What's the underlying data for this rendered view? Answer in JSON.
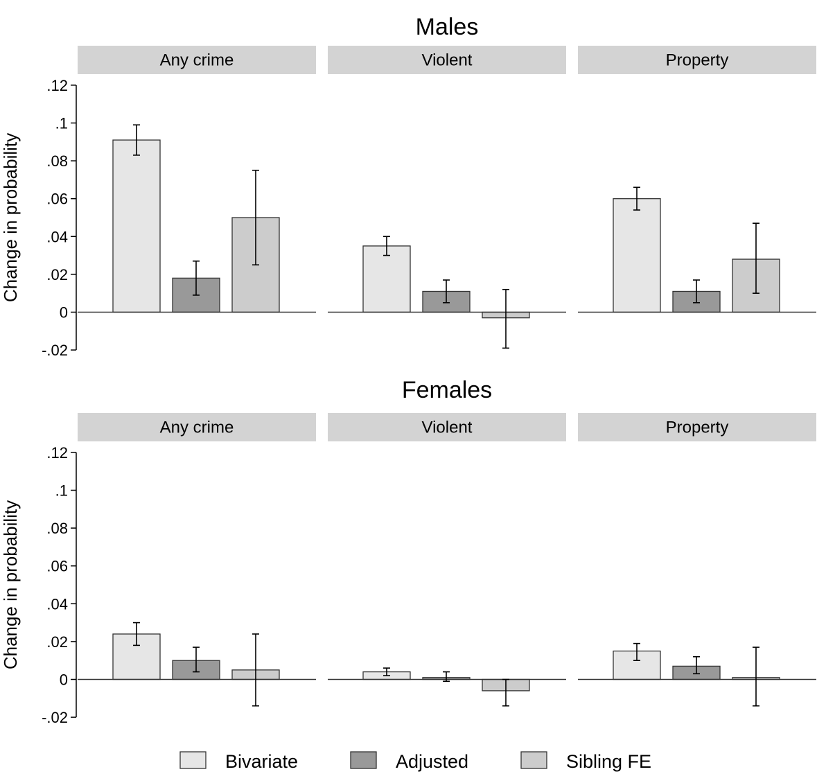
{
  "chart_data": {
    "type": "bar",
    "error_bars": true,
    "ylabel": "Change in probability",
    "yticks": [
      {
        "value": 0.12,
        "label": ".12"
      },
      {
        "value": 0.1,
        "label": ".1"
      },
      {
        "value": 0.08,
        "label": ".08"
      },
      {
        "value": 0.06,
        "label": ".06"
      },
      {
        "value": 0.04,
        "label": ".04"
      },
      {
        "value": 0.02,
        "label": ".02"
      },
      {
        "value": 0,
        "label": "0"
      },
      {
        "value": -0.02,
        "label": "-.02"
      }
    ],
    "ylim": [
      -0.02,
      0.12
    ],
    "series": [
      {
        "name": "Bivariate",
        "color": "#e6e6e6"
      },
      {
        "name": "Adjusted",
        "color": "#999999"
      },
      {
        "name": "Sibling FE",
        "color": "#cccccc"
      }
    ],
    "legend_position": "bottom",
    "panels": [
      {
        "title": "Males",
        "facets": [
          {
            "label": "Any crime",
            "values": [
              0.091,
              0.018,
              0.05
            ],
            "ci_low": [
              0.083,
              0.009,
              0.025
            ],
            "ci_high": [
              0.099,
              0.027,
              0.075
            ]
          },
          {
            "label": "Violent",
            "values": [
              0.035,
              0.011,
              -0.003
            ],
            "ci_low": [
              0.03,
              0.005,
              -0.019
            ],
            "ci_high": [
              0.04,
              0.017,
              0.012
            ]
          },
          {
            "label": "Property",
            "values": [
              0.06,
              0.011,
              0.028
            ],
            "ci_low": [
              0.054,
              0.005,
              0.01
            ],
            "ci_high": [
              0.066,
              0.017,
              0.047
            ]
          }
        ]
      },
      {
        "title": "Females",
        "facets": [
          {
            "label": "Any crime",
            "values": [
              0.024,
              0.01,
              0.005
            ],
            "ci_low": [
              0.018,
              0.004,
              -0.014
            ],
            "ci_high": [
              0.03,
              0.017,
              0.024
            ]
          },
          {
            "label": "Violent",
            "values": [
              0.004,
              0.001,
              -0.006
            ],
            "ci_low": [
              0.002,
              -0.001,
              -0.014
            ],
            "ci_high": [
              0.006,
              0.004,
              0.0
            ]
          },
          {
            "label": "Property",
            "values": [
              0.015,
              0.007,
              0.001
            ],
            "ci_low": [
              0.01,
              0.003,
              -0.014
            ],
            "ci_high": [
              0.019,
              0.012,
              0.017
            ]
          }
        ]
      }
    ]
  }
}
